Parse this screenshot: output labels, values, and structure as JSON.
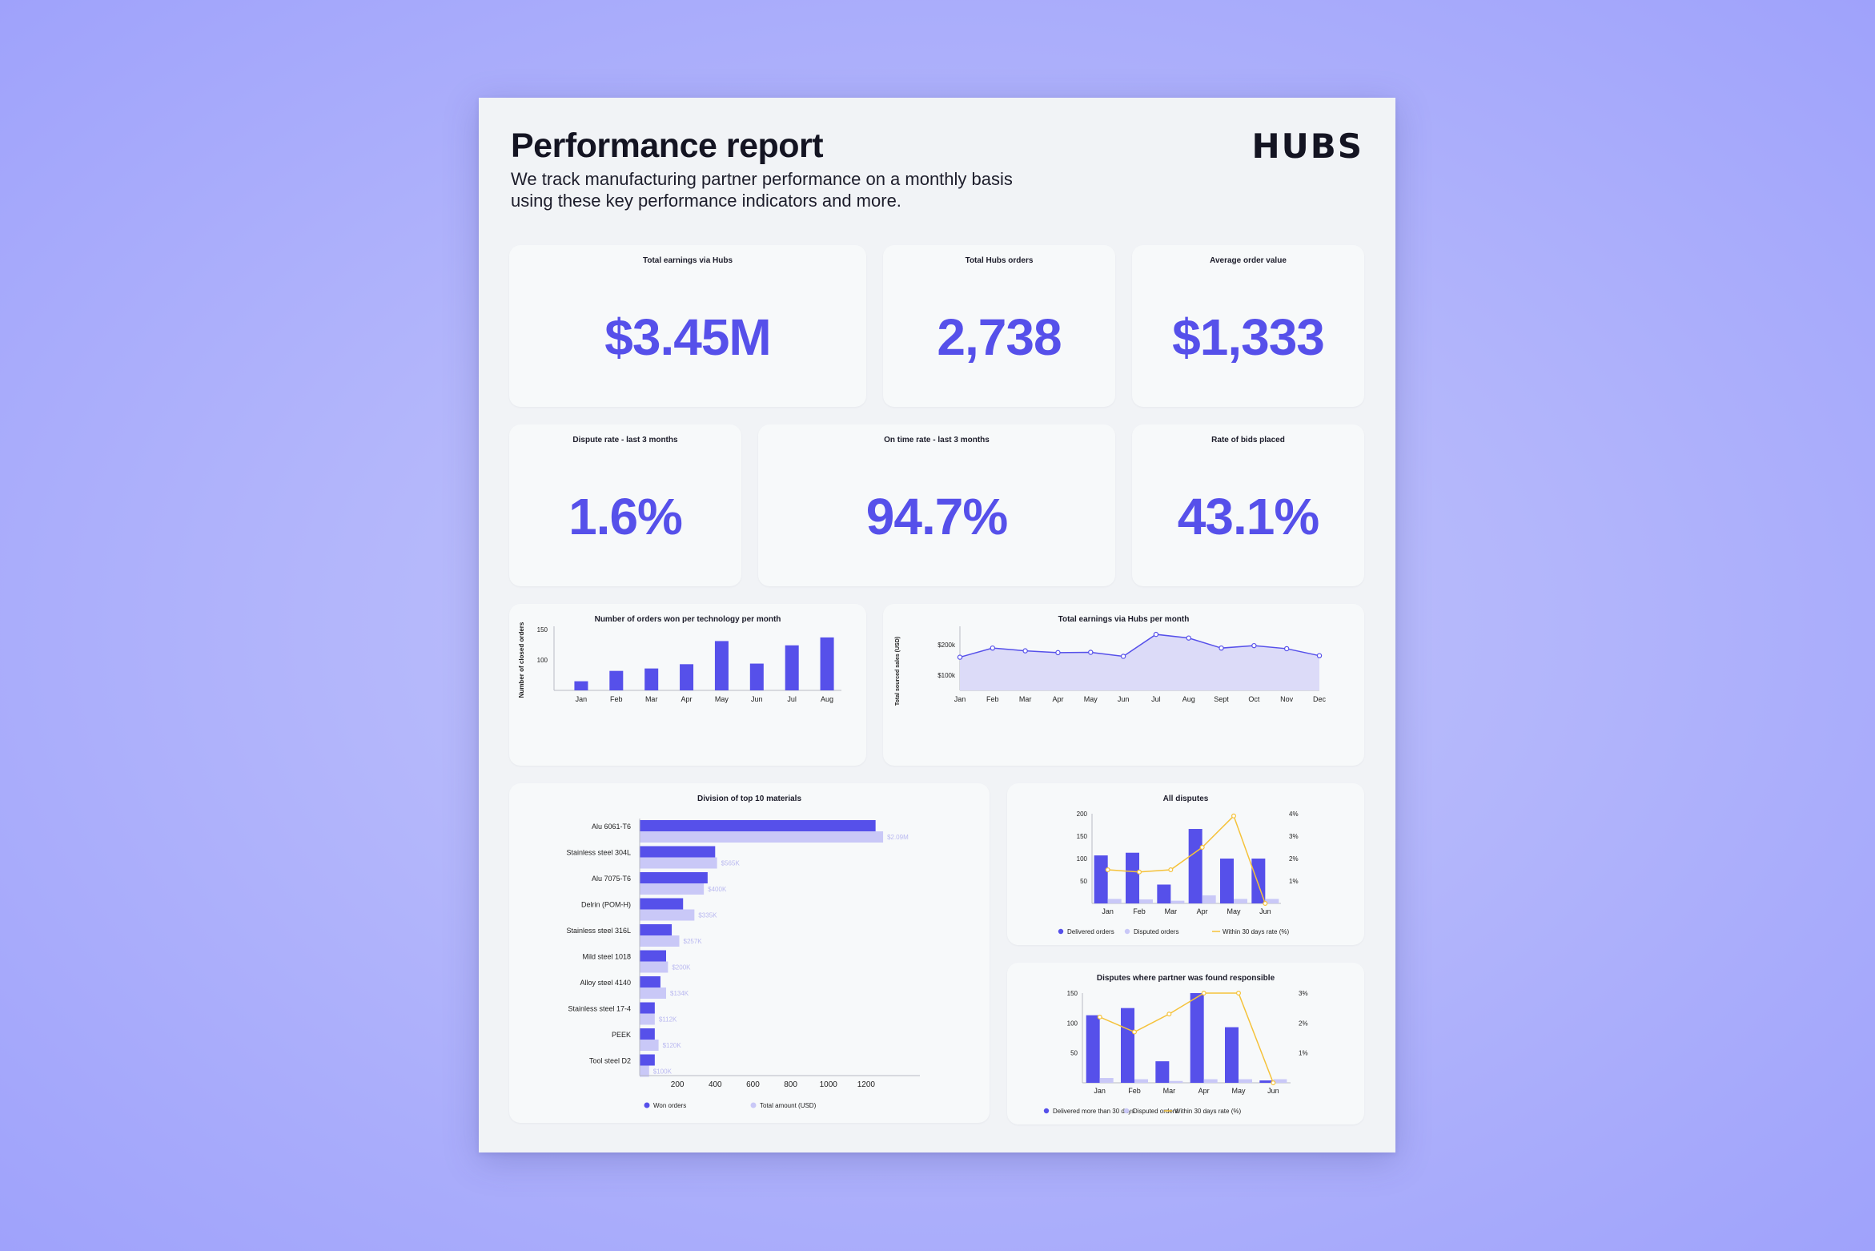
{
  "header": {
    "title": "Performance report",
    "subtitle": "We track manufacturing partner performance on a monthly basis using these key performance indicators and more.",
    "logo": "HUBS"
  },
  "kpis": [
    {
      "label": "Total earnings via Hubs",
      "value": "$3.45M"
    },
    {
      "label": "Total Hubs orders",
      "value": "2,738"
    },
    {
      "label": "Average order value",
      "value": "$1,333"
    },
    {
      "label": "Dispute rate - last 3 months",
      "value": "1.6%"
    },
    {
      "label": "On time rate - last 3 months",
      "value": "94.7%"
    },
    {
      "label": "Rate of bids placed",
      "value": "43.1%"
    }
  ],
  "colors": {
    "primary": "#5650ea",
    "light": "#c9c8f7",
    "line": "#f5c23a",
    "area": "#dcdbf8"
  },
  "chart_data": [
    {
      "type": "bar",
      "title": "Number of orders won per technology per month",
      "ylabel": "Number of closed orders",
      "xlabel": "",
      "categories": [
        "Jan",
        "Feb",
        "Mar",
        "Apr",
        "May",
        "Jun",
        "Jul",
        "Aug"
      ],
      "values": [
        65,
        82,
        86,
        93,
        131,
        94,
        124,
        137
      ],
      "ylim": [
        50,
        150
      ],
      "yticks": [
        {
          "v": 150,
          "label": "150"
        },
        {
          "v": 100,
          "label": "100"
        }
      ]
    },
    {
      "type": "area",
      "title": "Total earnings via Hubs per month",
      "ylabel": "Total sourced sales (USD)",
      "xlabel": "",
      "categories": [
        "Jan",
        "Feb",
        "Mar",
        "Apr",
        "May",
        "Jun",
        "Jul",
        "Aug",
        "Sept",
        "Oct",
        "Nov",
        "Dec"
      ],
      "values": [
        159000,
        189000,
        180000,
        174000,
        175000,
        162000,
        234000,
        222000,
        189000,
        197000,
        187000,
        164000
      ],
      "ylim": [
        50000,
        250000
      ],
      "yticks": [
        {
          "v": 200000,
          "label": "$200k"
        },
        {
          "v": 100000,
          "label": "$100k"
        }
      ]
    },
    {
      "type": "bar",
      "title": "Division of top 10 materials",
      "categories": [
        "Alu 6061-T6",
        "Stainless steel 304L",
        "Alu 7075-T6",
        "Delrin (POM-H)",
        "Stainless steel 316L",
        "Mild steel 1018",
        "Alloy steel 4140",
        "Stainless steel 17-4",
        "PEEK",
        "Tool steel D2"
      ],
      "series": [
        {
          "name": "Won orders",
          "values": [
            1250,
            400,
            360,
            230,
            170,
            140,
            110,
            80,
            80,
            80
          ]
        },
        {
          "name": "Total amount (USD)",
          "values": [
            1290,
            410,
            340,
            290,
            210,
            150,
            140,
            80,
            100,
            50
          ],
          "labels": [
            "$2.09M",
            "$565K",
            "$400K",
            "$335K",
            "$257K",
            "$200K",
            "$134K",
            "$112K",
            "$120K",
            "$100K"
          ]
        }
      ],
      "xticks": [
        200,
        400,
        600,
        800,
        1000,
        1200
      ],
      "xlim": [
        0,
        1400
      ]
    },
    {
      "type": "bar",
      "title": "All disputes",
      "categories": [
        "Jan",
        "Feb",
        "Mar",
        "Apr",
        "May",
        "Jun"
      ],
      "series": [
        {
          "name": "Delivered orders",
          "values": [
            107,
            113,
            42,
            166,
            100,
            100
          ]
        },
        {
          "name": "Disputed orders",
          "values": [
            10,
            9,
            6,
            18,
            10,
            10
          ]
        },
        {
          "name": "Within 30 days rate (%)",
          "axis": "right",
          "values": [
            1.5,
            1.4,
            1.5,
            2.5,
            3.9,
            0.0
          ]
        }
      ],
      "ylim": [
        0,
        200
      ],
      "yticks": [
        200,
        150,
        100,
        50
      ],
      "y2lim": [
        0,
        4
      ],
      "y2ticks": [
        {
          "v": 4,
          "label": "4%"
        },
        {
          "v": 3,
          "label": "3%"
        },
        {
          "v": 2,
          "label": "2%"
        },
        {
          "v": 1,
          "label": "1%"
        }
      ]
    },
    {
      "type": "bar",
      "title": "Disputes where partner was found responsible",
      "categories": [
        "Jan",
        "Feb",
        "Mar",
        "Apr",
        "May",
        "Jun"
      ],
      "series": [
        {
          "name": "Delivered more than 30 days",
          "values": [
            113,
            125,
            36,
            150,
            93,
            4
          ]
        },
        {
          "name": "Disputed orders",
          "values": [
            8,
            6,
            3,
            6,
            6,
            6
          ]
        },
        {
          "name": "Within 30 days rate (%)",
          "axis": "right",
          "values": [
            2.2,
            1.7,
            2.3,
            3.0,
            3.0,
            0.0
          ]
        }
      ],
      "ylim": [
        0,
        150
      ],
      "yticks": [
        150,
        100,
        50
      ],
      "y2lim": [
        0,
        3
      ],
      "y2ticks": [
        {
          "v": 3,
          "label": "3%"
        },
        {
          "v": 2,
          "label": "2%"
        },
        {
          "v": 1,
          "label": "1%"
        }
      ]
    }
  ]
}
